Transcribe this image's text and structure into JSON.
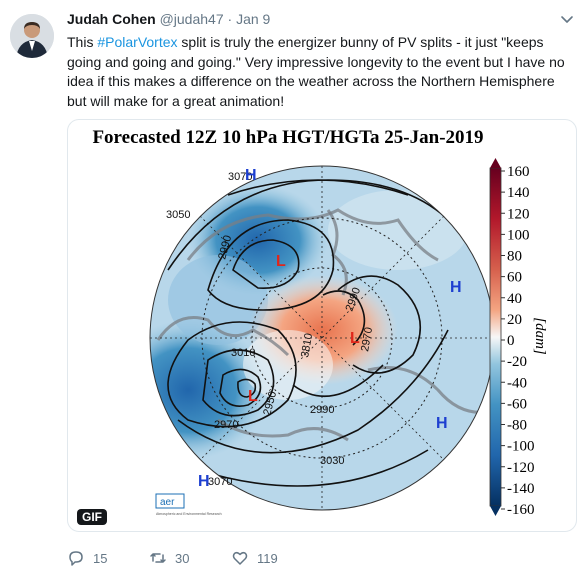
{
  "tweet": {
    "author_name": "Judah Cohen",
    "handle": "@judah47",
    "separator": "·",
    "date": "Jan 9",
    "hashtag": "#PolarVortex",
    "text_before": "This ",
    "text_after": " split is truly the energizer bunny of PV splits - it just \"keeps going and going and going.\" Very impressive longevity to the event but I have no idea if this makes a difference on the weather across the Northern Hemisphere but will make for a great animation!"
  },
  "media": {
    "title": "Forecasted 12Z 10 hPa HGT/HGTa 25-Jan-2019",
    "badge": "GIF",
    "colorbar_unit": "[dam]",
    "colorbar_ticks": [
      "160",
      "140",
      "120",
      "100",
      "80",
      "60",
      "40",
      "20",
      "0",
      "-20",
      "-40",
      "-60",
      "-80",
      "-100",
      "-120",
      "-140",
      "-160"
    ],
    "highs": [
      "H",
      "H",
      "H",
      "H"
    ],
    "lows": [
      "L",
      "L",
      "L"
    ],
    "contours": [
      "3070",
      "3050",
      "2990",
      "3010",
      "3810",
      "2990",
      "2970",
      "2950",
      "2970",
      "2990",
      "3030",
      "3070"
    ],
    "logo_text": "aer",
    "logo_sub": "Atmospheric and Environmental Research",
    "colors": {
      "high": "#1d3fd0",
      "low": "#e0261b",
      "warm": "#d6604d",
      "cool": "#4393c3"
    }
  },
  "actions": {
    "reply_count": "15",
    "retweet_count": "30",
    "like_count": "119"
  }
}
